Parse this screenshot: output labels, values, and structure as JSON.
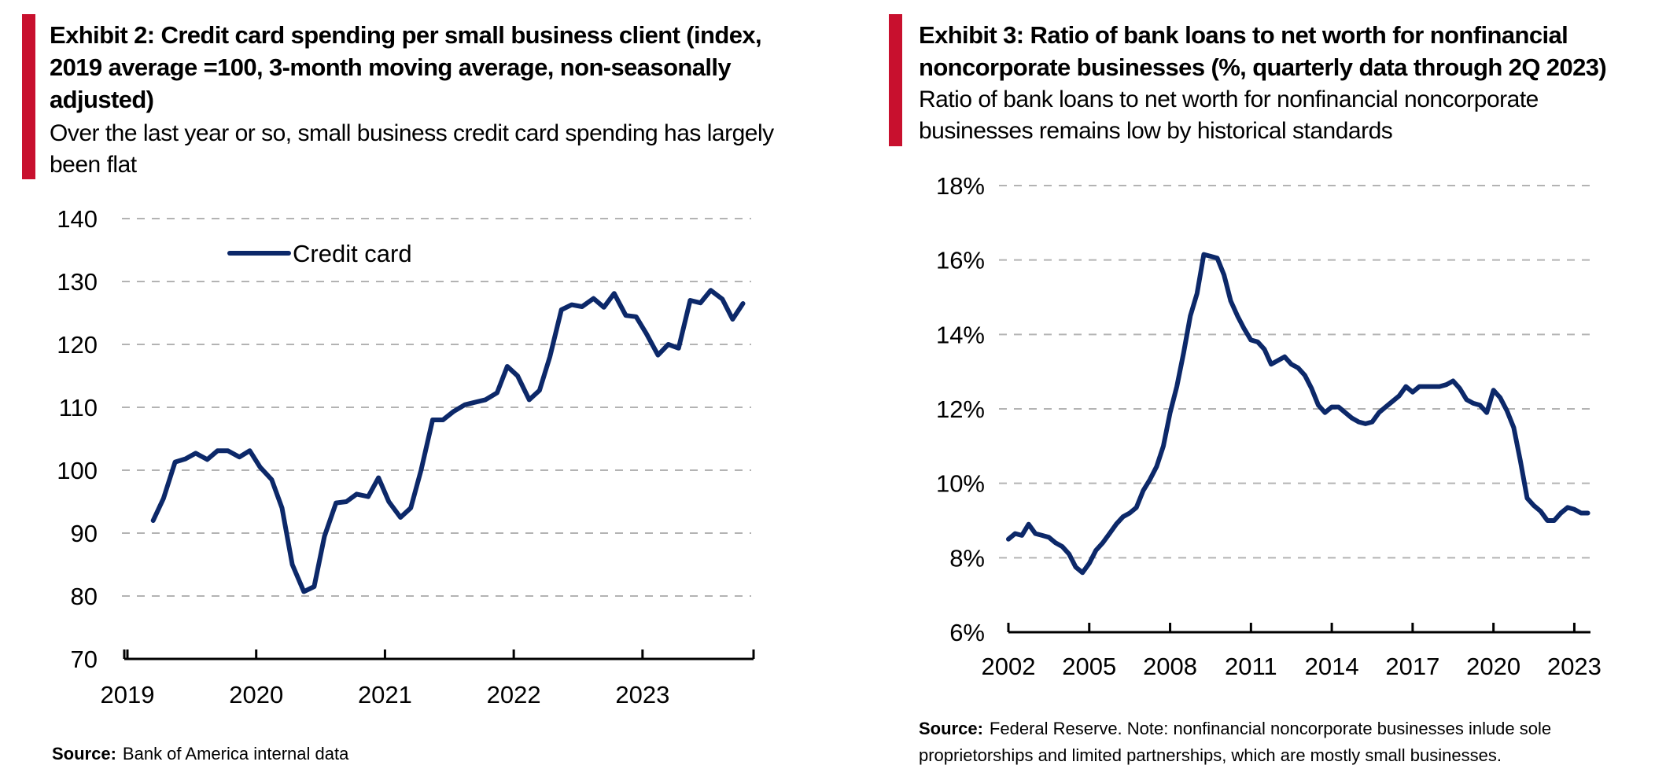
{
  "chart_data": [
    {
      "type": "line",
      "exhibit": "Exhibit 2: Credit card spending per small business client (index, 2019 average =100, 3-month moving average, non-seasonally adjusted)",
      "title_lines": [
        "Exhibit 2: Credit card spending per small business client (index,",
        "2019 average =100, 3-month moving average, non-seasonally",
        "adjusted)"
      ],
      "subtitle_lines": [
        "Over the last year or so, small business credit card spending has largely",
        "been flat"
      ],
      "source_label": "Source:",
      "source_text": "Bank of America internal data",
      "xlabel": "",
      "ylabel": "",
      "ylim": [
        70,
        140
      ],
      "xlim": [
        2019.0,
        2023.85
      ],
      "yticks": [
        140,
        130,
        120,
        110,
        100,
        90,
        80,
        70
      ],
      "xticks": [
        2019,
        2020,
        2021,
        2022,
        2023
      ],
      "grid": true,
      "legend": "top-left",
      "color": "#0c2869",
      "series": [
        {
          "name": "Credit card",
          "x": [
            2019.2,
            2019.28,
            2019.37,
            2019.45,
            2019.53,
            2019.62,
            2019.7,
            2019.78,
            2019.87,
            2019.95,
            2020.03,
            2020.12,
            2020.2,
            2020.28,
            2020.37,
            2020.45,
            2020.53,
            2020.62,
            2020.7,
            2020.78,
            2020.87,
            2020.95,
            2021.03,
            2021.12,
            2021.2,
            2021.28,
            2021.37,
            2021.45,
            2021.53,
            2021.62,
            2021.7,
            2021.78,
            2021.87,
            2021.95,
            2022.03,
            2022.12,
            2022.2,
            2022.28,
            2022.37,
            2022.45,
            2022.53,
            2022.62,
            2022.7,
            2022.78,
            2022.87,
            2022.95,
            2023.03,
            2023.12,
            2023.2,
            2023.28,
            2023.37,
            2023.45,
            2023.53,
            2023.62,
            2023.7,
            2023.78
          ],
          "values": [
            92,
            95.5,
            101.3,
            101.8,
            102.7,
            101.7,
            103.1,
            103.1,
            102.1,
            103.1,
            100.5,
            98.5,
            94,
            85,
            80.7,
            81.5,
            89.5,
            94.8,
            95,
            96.2,
            95.8,
            98.8,
            95,
            92.5,
            94,
            100,
            108,
            108,
            109.3,
            110.4,
            110.8,
            111.2,
            112.3,
            116.5,
            115,
            111.2,
            112.7,
            118,
            125.5,
            126.3,
            126,
            127.3,
            125.9,
            128.1,
            124.6,
            124.4,
            121.7,
            118.3,
            120,
            119.4,
            127,
            126.6,
            128.6,
            127.2,
            124,
            126.5
          ]
        }
      ]
    },
    {
      "type": "line",
      "exhibit": "Exhibit 3: Ratio of bank loans to net worth for nonfinancial noncorporate businesses (%, quarterly data through 2Q 2023)",
      "title_lines": [
        "Exhibit 3: Ratio of bank loans to net worth for nonfinancial",
        "noncorporate businesses (%, quarterly data through 2Q 2023)"
      ],
      "subtitle_lines": [
        "Ratio of bank loans to net worth for nonfinancial noncorporate",
        "businesses remains low by historical standards"
      ],
      "source_label": "Source:",
      "source_lines": [
        "Federal Reserve. Note: nonfinancial  noncorporate businesses  inlude sole",
        "proprietorships  and limited partnerships,  which  are mostly small businesses."
      ],
      "xlabel": "",
      "ylabel": "",
      "ylim": [
        6,
        18
      ],
      "xlim": [
        2002,
        2023.6
      ],
      "yticks": [
        18,
        16,
        14,
        12,
        10,
        8,
        6
      ],
      "ytick_labels": [
        "18%",
        "16%",
        "14%",
        "12%",
        "10%",
        "8%",
        "6%"
      ],
      "xticks": [
        2002,
        2005,
        2008,
        2011,
        2014,
        2017,
        2020,
        2023
      ],
      "grid": true,
      "color": "#0c2869",
      "series": [
        {
          "name": "",
          "x": [
            2002.0,
            2002.25,
            2002.5,
            2002.75,
            2003.0,
            2003.25,
            2003.5,
            2003.75,
            2004.0,
            2004.25,
            2004.5,
            2004.75,
            2005.0,
            2005.25,
            2005.5,
            2005.75,
            2006.0,
            2006.25,
            2006.5,
            2006.75,
            2007.0,
            2007.25,
            2007.5,
            2007.75,
            2008.0,
            2008.25,
            2008.5,
            2008.75,
            2009.0,
            2009.25,
            2009.5,
            2009.75,
            2010.0,
            2010.25,
            2010.5,
            2010.75,
            2011.0,
            2011.25,
            2011.5,
            2011.75,
            2012.0,
            2012.25,
            2012.5,
            2012.75,
            2013.0,
            2013.25,
            2013.5,
            2013.75,
            2014.0,
            2014.25,
            2014.5,
            2014.75,
            2015.0,
            2015.25,
            2015.5,
            2015.75,
            2016.0,
            2016.25,
            2016.5,
            2016.75,
            2017.0,
            2017.25,
            2017.5,
            2017.75,
            2018.0,
            2018.25,
            2018.5,
            2018.75,
            2019.0,
            2019.25,
            2019.5,
            2019.75,
            2020.0,
            2020.25,
            2020.5,
            2020.75,
            2021.0,
            2021.25,
            2021.5,
            2021.75,
            2022.0,
            2022.25,
            2022.5,
            2022.75,
            2023.0,
            2023.25,
            2023.5
          ],
          "values": [
            8.5,
            8.65,
            8.6,
            8.9,
            8.65,
            8.6,
            8.55,
            8.4,
            8.3,
            8.1,
            7.75,
            7.6,
            7.85,
            8.2,
            8.4,
            8.65,
            8.9,
            9.1,
            9.2,
            9.35,
            9.8,
            10.1,
            10.45,
            11.0,
            11.9,
            12.6,
            13.5,
            14.5,
            15.1,
            16.15,
            16.1,
            16.05,
            15.6,
            14.9,
            14.5,
            14.15,
            13.85,
            13.8,
            13.6,
            13.2,
            13.3,
            13.4,
            13.2,
            13.1,
            12.9,
            12.55,
            12.1,
            11.9,
            12.05,
            12.05,
            11.9,
            11.75,
            11.65,
            11.6,
            11.65,
            11.9,
            12.05,
            12.2,
            12.35,
            12.6,
            12.45,
            12.6,
            12.6,
            12.6,
            12.6,
            12.65,
            12.75,
            12.55,
            12.25,
            12.15,
            12.1,
            11.9,
            12.5,
            12.3,
            11.95,
            11.5,
            10.6,
            9.6,
            9.4,
            9.25,
            9.0,
            9.0,
            9.2,
            9.35,
            9.3,
            9.2,
            9.2
          ]
        }
      ]
    }
  ]
}
